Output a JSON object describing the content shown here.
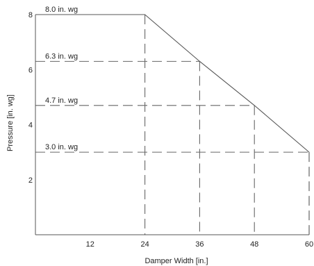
{
  "chart_data": {
    "type": "line",
    "title": "",
    "xlabel": "Damper Width [in.]",
    "ylabel": "Pressure [in. wg]",
    "xlim": [
      0,
      60
    ],
    "ylim": [
      0,
      8
    ],
    "x_ticks": [
      12,
      24,
      36,
      48,
      60
    ],
    "y_ticks": [
      2,
      4,
      6,
      8
    ],
    "grid": false,
    "series": [
      {
        "x": [
          0,
          24,
          36,
          48,
          60
        ],
        "y": [
          8.0,
          8.0,
          6.3,
          4.7,
          3.0
        ]
      }
    ],
    "reference_lines": [
      {
        "x": 24,
        "y": 8.0,
        "label": "8.0 in. wg"
      },
      {
        "x": 36,
        "y": 6.3,
        "label": "6.3 in. wg"
      },
      {
        "x": 48,
        "y": 4.7,
        "label": "4.7 in. wg"
      },
      {
        "x": 60,
        "y": 3.0,
        "label": "3.0 in. wg"
      }
    ],
    "colors": {
      "line": "#555555",
      "dash": "#666666",
      "text": "#222222"
    }
  }
}
